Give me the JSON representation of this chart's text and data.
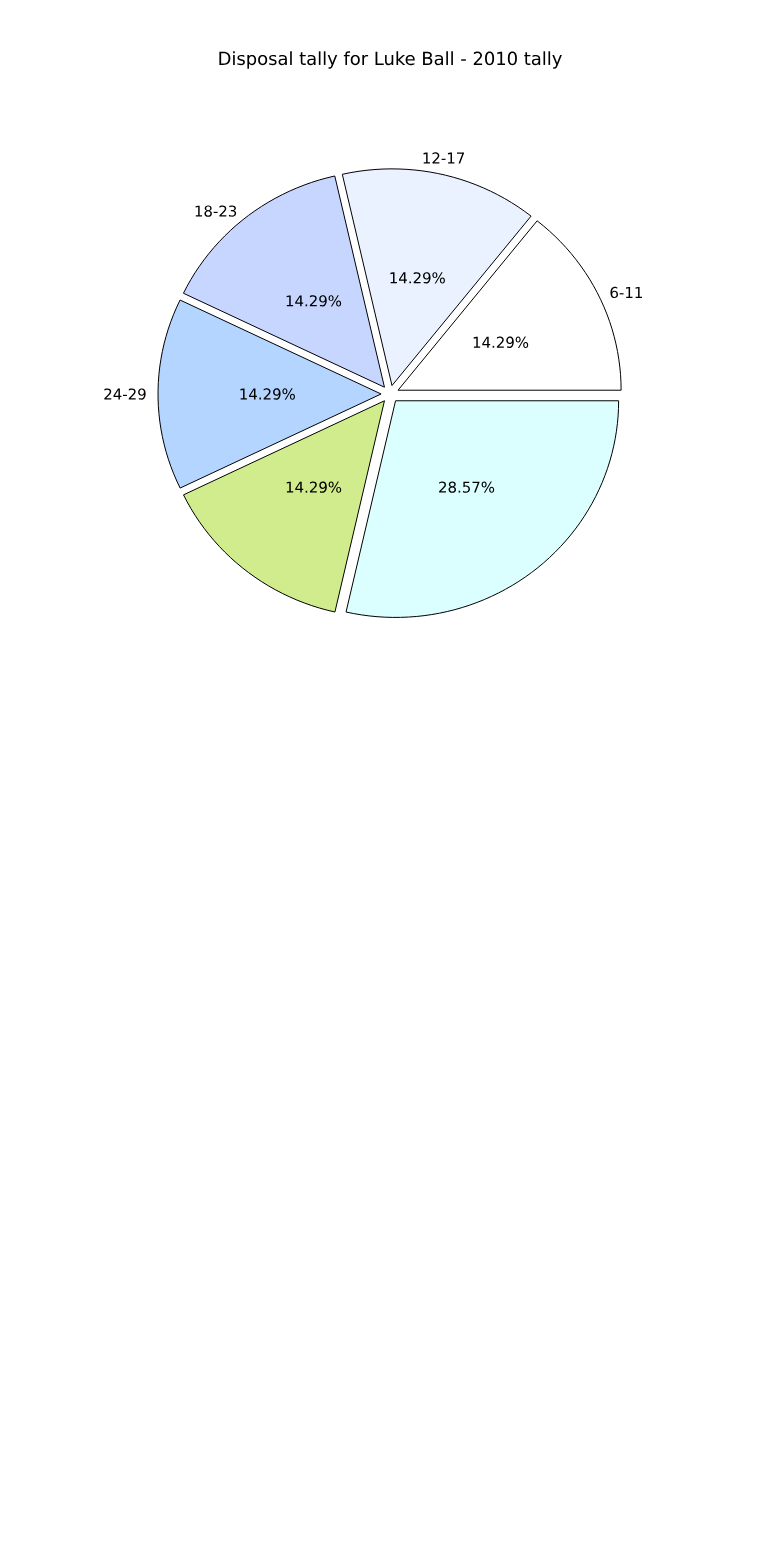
{
  "chart_data": {
    "type": "pie",
    "title": "Disposal tally for Luke Ball - 2010 tally",
    "categories": [
      "6-11",
      "12-17",
      "18-23",
      "24-29",
      null,
      null
    ],
    "values": [
      14.29,
      14.29,
      14.29,
      14.29,
      14.29,
      28.57
    ],
    "value_labels": [
      "14.29%",
      "14.29%",
      "14.29%",
      "14.29%",
      "14.29%",
      "28.57%"
    ],
    "colors": [
      "#ffffff",
      "#eaf2ff",
      "#c6d6ff",
      "#b3d5ff",
      "#d0ec8c",
      "#dbffff"
    ]
  }
}
